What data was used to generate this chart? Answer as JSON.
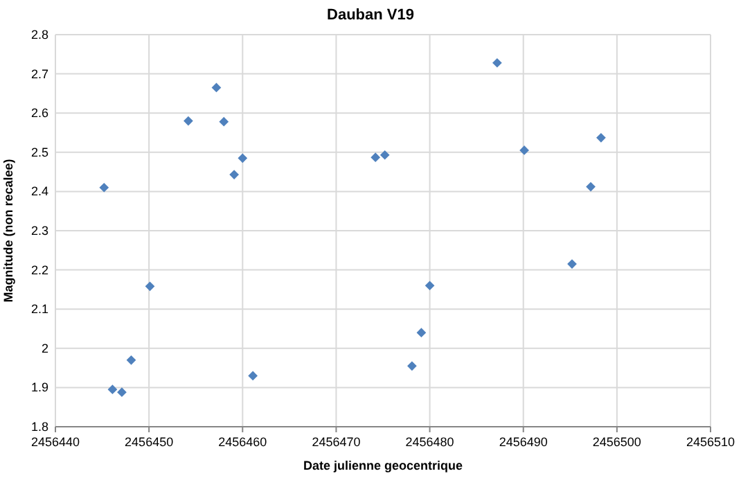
{
  "chart_data": {
    "type": "scatter",
    "title": "Dauban V19",
    "xlabel": "Date julienne geocentrique",
    "ylabel": "Magnitude (non recalee)",
    "x": [
      2456445.2,
      2456446.1,
      2456447.1,
      2456448.1,
      2456450.1,
      2456454.2,
      2456457.2,
      2456458.0,
      2456459.1,
      2456460.0,
      2456461.1,
      2456474.2,
      2456475.2,
      2456478.1,
      2456479.1,
      2456480.0,
      2456487.2,
      2456490.1,
      2456495.2,
      2456497.2,
      2456498.3
    ],
    "series": [
      {
        "color": "#4f81bd",
        "values": [
          2.41,
          1.895,
          1.888,
          1.97,
          2.158,
          2.58,
          2.665,
          2.578,
          2.443,
          2.485,
          1.93,
          2.487,
          2.493,
          1.955,
          2.04,
          2.16,
          2.728,
          2.505,
          2.215,
          2.412,
          2.537
        ]
      }
    ],
    "xlim": [
      2456440,
      2456510
    ],
    "xticks": [
      2456440,
      2456450,
      2456460,
      2456470,
      2456480,
      2456490,
      2456500,
      2456510
    ],
    "ylim": [
      1.8,
      2.8
    ],
    "yticks": [
      1.8,
      1.9,
      2,
      2.1,
      2.2,
      2.3,
      2.4,
      2.5,
      2.6,
      2.7,
      2.8
    ],
    "grid": true,
    "marker": "diamond"
  }
}
